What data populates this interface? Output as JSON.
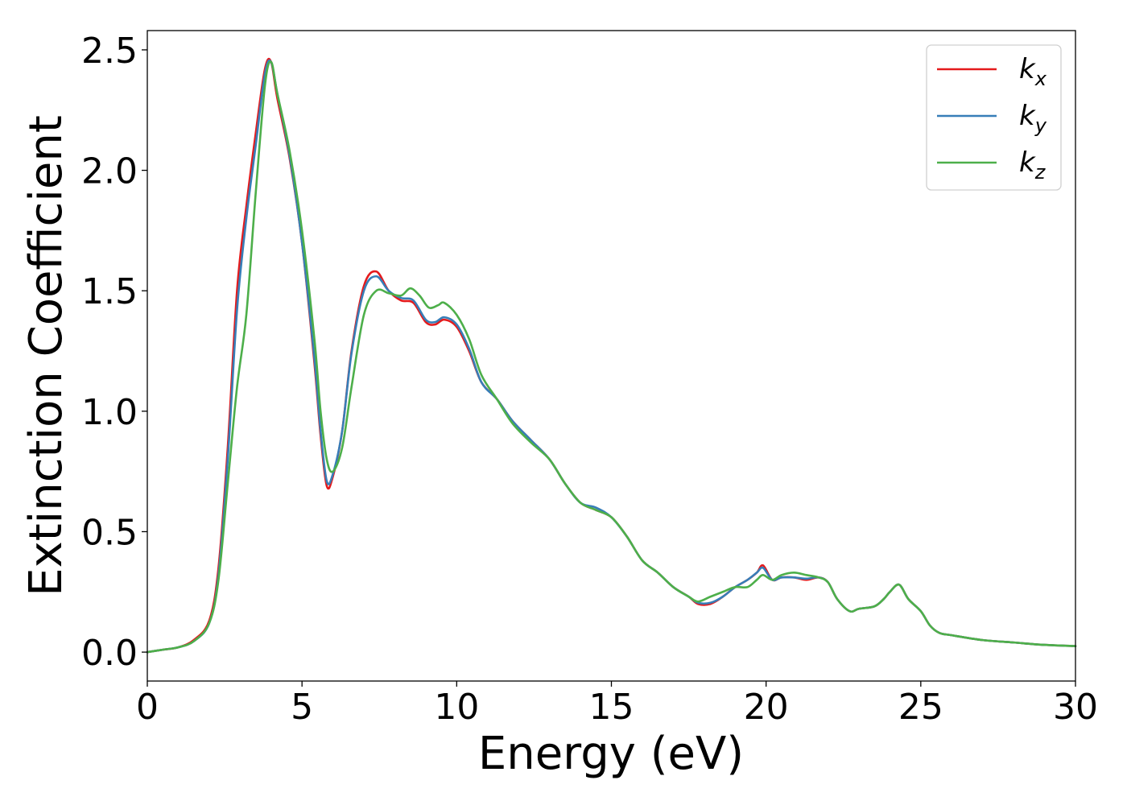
{
  "chart_data": {
    "type": "line",
    "title": "",
    "xlabel": "Energy (eV)",
    "ylabel": "Extinction Coefficient",
    "xlim": [
      0,
      30
    ],
    "ylim": [
      -0.12,
      2.58
    ],
    "xticks": [
      0,
      5,
      10,
      15,
      20,
      25,
      30
    ],
    "xtick_labels": [
      "0",
      "5",
      "10",
      "15",
      "20",
      "25",
      "30"
    ],
    "yticks": [
      0.0,
      0.5,
      1.0,
      1.5,
      2.0,
      2.5
    ],
    "ytick_labels": [
      "0.0",
      "0.5",
      "1.0",
      "1.5",
      "2.0",
      "2.5"
    ],
    "grid": false,
    "legend_position": "top-right",
    "series": [
      {
        "name": "k_x",
        "label_main": "k",
        "label_sub": "x",
        "color": "#e41a1c",
        "x": [
          0,
          0.5,
          1.0,
          1.5,
          2.0,
          2.3,
          2.6,
          2.9,
          3.2,
          3.5,
          3.8,
          4.0,
          4.2,
          4.6,
          5.0,
          5.4,
          5.6,
          5.8,
          6.0,
          6.3,
          6.6,
          7.0,
          7.4,
          7.8,
          8.2,
          8.6,
          9.0,
          9.3,
          9.6,
          10.0,
          10.4,
          10.8,
          11.3,
          11.8,
          12.4,
          13.0,
          13.5,
          14.0,
          14.5,
          15.0,
          15.5,
          16.0,
          16.5,
          17.0,
          17.5,
          17.8,
          18.2,
          18.6,
          19.0,
          19.4,
          19.7,
          19.9,
          20.2,
          20.5,
          20.9,
          21.3,
          21.7,
          22.0,
          22.3,
          22.7,
          23.0,
          23.5,
          23.8,
          24.0,
          24.3,
          24.6,
          25.0,
          25.3,
          25.6,
          26.0,
          27.0,
          28.0,
          29.0,
          30.0
        ],
        "y": [
          0.0,
          0.01,
          0.02,
          0.05,
          0.13,
          0.35,
          0.85,
          1.5,
          1.85,
          2.15,
          2.42,
          2.45,
          2.3,
          2.05,
          1.7,
          1.2,
          0.9,
          0.69,
          0.73,
          0.92,
          1.25,
          1.52,
          1.58,
          1.5,
          1.46,
          1.45,
          1.37,
          1.36,
          1.38,
          1.35,
          1.25,
          1.12,
          1.05,
          0.96,
          0.88,
          0.8,
          0.7,
          0.62,
          0.59,
          0.56,
          0.48,
          0.38,
          0.33,
          0.27,
          0.23,
          0.2,
          0.2,
          0.23,
          0.27,
          0.3,
          0.33,
          0.36,
          0.3,
          0.31,
          0.31,
          0.3,
          0.31,
          0.29,
          0.22,
          0.17,
          0.18,
          0.19,
          0.22,
          0.25,
          0.28,
          0.22,
          0.17,
          0.11,
          0.08,
          0.07,
          0.05,
          0.04,
          0.03,
          0.025
        ]
      },
      {
        "name": "k_y",
        "label_main": "k",
        "label_sub": "y",
        "color": "#377eb8",
        "x": [
          0,
          0.5,
          1.0,
          1.5,
          2.0,
          2.3,
          2.6,
          2.9,
          3.2,
          3.5,
          3.8,
          4.0,
          4.2,
          4.6,
          5.0,
          5.4,
          5.6,
          5.8,
          6.0,
          6.3,
          6.6,
          7.0,
          7.4,
          7.8,
          8.2,
          8.6,
          9.0,
          9.3,
          9.6,
          10.0,
          10.4,
          10.8,
          11.3,
          11.8,
          12.4,
          13.0,
          13.5,
          14.0,
          14.5,
          15.0,
          15.5,
          16.0,
          16.5,
          17.0,
          17.5,
          17.8,
          18.2,
          18.6,
          19.0,
          19.4,
          19.7,
          19.9,
          20.2,
          20.5,
          20.9,
          21.3,
          21.7,
          22.0,
          22.3,
          22.7,
          23.0,
          23.5,
          23.8,
          24.0,
          24.3,
          24.6,
          25.0,
          25.3,
          25.6,
          26.0,
          27.0,
          28.0,
          29.0,
          30.0
        ],
        "y": [
          0.0,
          0.01,
          0.02,
          0.045,
          0.12,
          0.32,
          0.8,
          1.42,
          1.8,
          2.1,
          2.4,
          2.45,
          2.32,
          2.06,
          1.7,
          1.22,
          0.92,
          0.71,
          0.74,
          0.92,
          1.24,
          1.5,
          1.56,
          1.5,
          1.47,
          1.46,
          1.38,
          1.37,
          1.39,
          1.36,
          1.26,
          1.12,
          1.05,
          0.96,
          0.88,
          0.8,
          0.7,
          0.62,
          0.6,
          0.56,
          0.48,
          0.38,
          0.33,
          0.27,
          0.23,
          0.205,
          0.205,
          0.23,
          0.27,
          0.3,
          0.33,
          0.35,
          0.3,
          0.31,
          0.31,
          0.305,
          0.31,
          0.29,
          0.22,
          0.17,
          0.18,
          0.19,
          0.22,
          0.25,
          0.28,
          0.22,
          0.17,
          0.11,
          0.08,
          0.07,
          0.05,
          0.04,
          0.03,
          0.025
        ]
      },
      {
        "name": "k_z",
        "label_main": "k",
        "label_sub": "z",
        "color": "#4daf4a",
        "x": [
          0,
          0.5,
          1.0,
          1.5,
          2.0,
          2.3,
          2.6,
          2.9,
          3.2,
          3.5,
          3.8,
          4.0,
          4.2,
          4.6,
          5.0,
          5.4,
          5.6,
          5.8,
          6.0,
          6.3,
          6.6,
          7.0,
          7.4,
          7.8,
          8.2,
          8.5,
          8.8,
          9.1,
          9.4,
          9.6,
          10.0,
          10.4,
          10.8,
          11.3,
          11.8,
          12.4,
          13.0,
          13.5,
          14.0,
          14.5,
          15.0,
          15.5,
          16.0,
          16.5,
          17.0,
          17.5,
          17.8,
          18.2,
          18.6,
          19.0,
          19.4,
          19.7,
          19.9,
          20.2,
          20.5,
          20.9,
          21.3,
          21.7,
          22.0,
          22.3,
          22.7,
          23.0,
          23.5,
          23.8,
          24.0,
          24.3,
          24.6,
          25.0,
          25.3,
          25.6,
          26.0,
          27.0,
          28.0,
          29.0,
          30.0
        ],
        "y": [
          0.0,
          0.01,
          0.02,
          0.045,
          0.12,
          0.3,
          0.7,
          1.1,
          1.4,
          1.9,
          2.35,
          2.45,
          2.32,
          2.08,
          1.75,
          1.3,
          1.0,
          0.8,
          0.75,
          0.85,
          1.1,
          1.4,
          1.5,
          1.49,
          1.48,
          1.51,
          1.48,
          1.43,
          1.44,
          1.45,
          1.4,
          1.3,
          1.15,
          1.05,
          0.95,
          0.87,
          0.8,
          0.7,
          0.62,
          0.59,
          0.56,
          0.48,
          0.38,
          0.33,
          0.27,
          0.23,
          0.21,
          0.23,
          0.25,
          0.27,
          0.27,
          0.3,
          0.32,
          0.3,
          0.32,
          0.33,
          0.32,
          0.31,
          0.29,
          0.22,
          0.17,
          0.18,
          0.19,
          0.22,
          0.25,
          0.28,
          0.22,
          0.17,
          0.11,
          0.08,
          0.07,
          0.05,
          0.04,
          0.03,
          0.025
        ]
      }
    ]
  }
}
